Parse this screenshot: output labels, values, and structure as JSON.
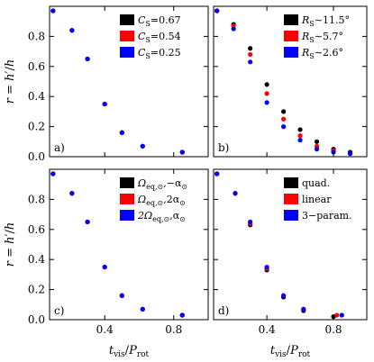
{
  "chart_data": [
    {
      "type": "scatter",
      "panel_label": "a)",
      "xlim": [
        0.08,
        1.0
      ],
      "ylim": [
        0.0,
        1.0
      ],
      "xticks": [
        0.4,
        0.8
      ],
      "xtick_labels": [
        "",
        ""
      ],
      "yticks": [
        0.0,
        0.2,
        0.4,
        0.6,
        0.8
      ],
      "ytick_labels": [
        "0.0",
        "0.2",
        "0.4",
        "0.6",
        "0.8"
      ],
      "xlabel": "",
      "ylabel": "r = h′/h",
      "legend_position": "top-right",
      "series": [
        {
          "name": "C_S=0.67",
          "label_main": "C",
          "label_sub": "S",
          "label_rest": "=0.67",
          "color": "#000000",
          "x": [
            0.1,
            0.21,
            0.3,
            0.4,
            0.5,
            0.62,
            0.85
          ],
          "y": [
            0.97,
            0.84,
            0.65,
            0.35,
            0.16,
            0.07,
            0.03
          ]
        },
        {
          "name": "C_S=0.54",
          "label_main": "C",
          "label_sub": "S",
          "label_rest": "=0.54",
          "color": "#ff0000",
          "x": [
            0.1,
            0.21,
            0.3,
            0.4,
            0.5,
            0.62,
            0.85
          ],
          "y": [
            0.97,
            0.84,
            0.65,
            0.35,
            0.16,
            0.07,
            0.03
          ]
        },
        {
          "name": "C_S=0.25",
          "label_main": "C",
          "label_sub": "S",
          "label_rest": "=0.25",
          "color": "#0000ff",
          "x": [
            0.1,
            0.21,
            0.3,
            0.4,
            0.5,
            0.62,
            0.85
          ],
          "y": [
            0.97,
            0.84,
            0.65,
            0.35,
            0.16,
            0.07,
            0.03
          ]
        }
      ]
    },
    {
      "type": "scatter",
      "panel_label": "b)",
      "xlim": [
        0.08,
        1.0
      ],
      "ylim": [
        0.0,
        1.0
      ],
      "xticks": [
        0.4,
        0.8
      ],
      "xtick_labels": [
        "",
        ""
      ],
      "yticks": [
        0.0,
        0.2,
        0.4,
        0.6,
        0.8
      ],
      "ytick_labels": [
        "",
        "",
        "",
        "",
        ""
      ],
      "xlabel": "",
      "ylabel": "",
      "legend_position": "top-right",
      "series": [
        {
          "name": "R_S~11.5°",
          "label_main": "R",
          "label_sub": "S",
          "label_rest": "∼11.5°",
          "color": "#000000",
          "x": [
            0.1,
            0.2,
            0.3,
            0.4,
            0.5,
            0.6,
            0.7,
            0.8,
            0.9
          ],
          "y": [
            0.97,
            0.88,
            0.72,
            0.48,
            0.3,
            0.18,
            0.1,
            0.05,
            0.03
          ]
        },
        {
          "name": "R_S~5.7°",
          "label_main": "R",
          "label_sub": "S",
          "label_rest": "∼5.7°",
          "color": "#ff0000",
          "x": [
            0.1,
            0.2,
            0.3,
            0.4,
            0.5,
            0.6,
            0.7,
            0.8,
            0.9
          ],
          "y": [
            0.97,
            0.87,
            0.68,
            0.42,
            0.25,
            0.14,
            0.07,
            0.04,
            0.02
          ]
        },
        {
          "name": "R_S~2.6°",
          "label_main": "R",
          "label_sub": "S",
          "label_rest": "∼2.6°",
          "color": "#0000ff",
          "x": [
            0.1,
            0.2,
            0.3,
            0.4,
            0.5,
            0.6,
            0.7,
            0.8,
            0.9
          ],
          "y": [
            0.97,
            0.85,
            0.63,
            0.36,
            0.2,
            0.11,
            0.05,
            0.03,
            0.02
          ]
        }
      ]
    },
    {
      "type": "scatter",
      "panel_label": "c)",
      "xlim": [
        0.08,
        1.0
      ],
      "ylim": [
        0.0,
        1.0
      ],
      "xticks": [
        0.4,
        0.8
      ],
      "xtick_labels": [
        "0.4",
        "0.8"
      ],
      "yticks": [
        0.0,
        0.2,
        0.4,
        0.6,
        0.8
      ],
      "ytick_labels": [
        "0.0",
        "0.2",
        "0.4",
        "0.6",
        "0.8"
      ],
      "xlabel": "t_vis / P_rot",
      "ylabel": "r = h′/h",
      "legend_position": "top-right",
      "series": [
        {
          "name": "Ω_eq,⊙, −α_⊙",
          "label_main": "Ω",
          "label_sub": "eq,⊙",
          "label_rest": ",−α",
          "label_sub2": "⊙",
          "color": "#000000",
          "x": [
            0.1,
            0.21,
            0.3,
            0.4,
            0.5,
            0.62,
            0.85
          ],
          "y": [
            0.97,
            0.84,
            0.65,
            0.35,
            0.16,
            0.07,
            0.03
          ]
        },
        {
          "name": "Ω_eq,⊙, 2α_⊙",
          "label_main": "Ω",
          "label_sub": "eq,⊙",
          "label_rest": ",2α",
          "label_sub2": "⊙",
          "color": "#ff0000",
          "x": [
            0.1,
            0.21,
            0.3,
            0.4,
            0.5,
            0.62,
            0.85
          ],
          "y": [
            0.97,
            0.84,
            0.65,
            0.35,
            0.16,
            0.07,
            0.03
          ]
        },
        {
          "name": "2Ω_eq,⊙, α_⊙",
          "label_main": "2Ω",
          "label_sub": "eq,⊙",
          "label_rest": ",α",
          "label_sub2": "⊙",
          "color": "#0000ff",
          "x": [
            0.1,
            0.21,
            0.3,
            0.4,
            0.5,
            0.62,
            0.85
          ],
          "y": [
            0.97,
            0.84,
            0.65,
            0.35,
            0.16,
            0.07,
            0.03
          ]
        }
      ]
    },
    {
      "type": "scatter",
      "panel_label": "d)",
      "xlim": [
        0.08,
        1.0
      ],
      "ylim": [
        0.0,
        1.0
      ],
      "xticks": [
        0.4,
        0.8
      ],
      "xtick_labels": [
        "0.4",
        "0.8"
      ],
      "yticks": [
        0.0,
        0.2,
        0.4,
        0.6,
        0.8
      ],
      "ytick_labels": [
        "",
        "",
        "",
        "",
        ""
      ],
      "xlabel": "t_vis / P_rot",
      "ylabel": "",
      "legend_position": "top-right",
      "series": [
        {
          "name": "quad.",
          "label_main": "quad.",
          "label_sub": "",
          "label_rest": "",
          "color": "#000000",
          "x": [
            0.1,
            0.21,
            0.3,
            0.4,
            0.5,
            0.62,
            0.8
          ],
          "y": [
            0.97,
            0.84,
            0.63,
            0.33,
            0.15,
            0.06,
            0.02
          ]
        },
        {
          "name": "linear",
          "label_main": "linear",
          "label_sub": "",
          "label_rest": "",
          "color": "#ff0000",
          "x": [
            0.1,
            0.21,
            0.3,
            0.4,
            0.5,
            0.62,
            0.82
          ],
          "y": [
            0.97,
            0.84,
            0.64,
            0.34,
            0.16,
            0.07,
            0.03
          ]
        },
        {
          "name": "3-param.",
          "label_main": "3−param.",
          "label_sub": "",
          "label_rest": "",
          "color": "#0000ff",
          "x": [
            0.1,
            0.21,
            0.3,
            0.4,
            0.5,
            0.62,
            0.85
          ],
          "y": [
            0.97,
            0.84,
            0.65,
            0.35,
            0.16,
            0.07,
            0.03
          ]
        }
      ]
    }
  ]
}
